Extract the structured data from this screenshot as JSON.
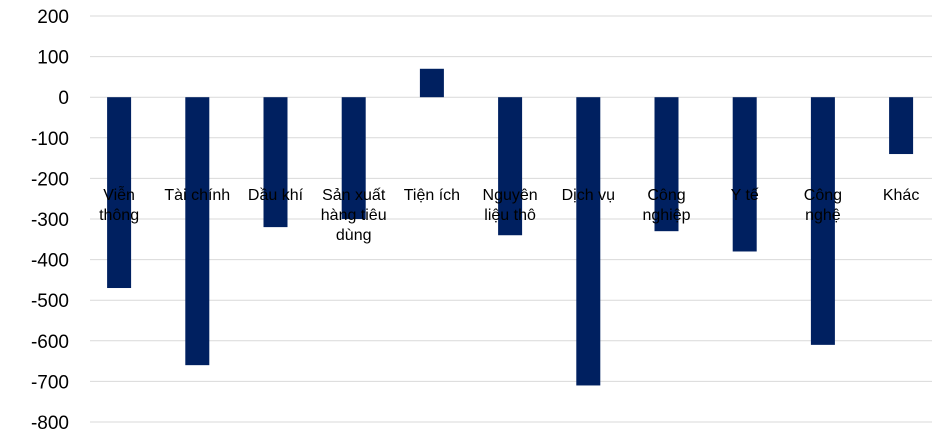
{
  "chart_data": {
    "type": "bar",
    "categories": [
      "Viễn thông",
      "Tài chính",
      "Dầu khí",
      "Sản xuất hàng tiêu dùng",
      "Tiện ích",
      "Nguyên liệu thô",
      "Dịch vụ",
      "Công nghiệp",
      "Y tế",
      "Công nghệ",
      "Khác"
    ],
    "category_label_lines": [
      [
        "Viễn",
        "thông"
      ],
      [
        "Tài chính"
      ],
      [
        "Dầu khí"
      ],
      [
        "Sản xuất",
        "hàng tiêu",
        "dùng"
      ],
      [
        "Tiện ích"
      ],
      [
        "Nguyên",
        "liệu thô"
      ],
      [
        "Dịch vụ"
      ],
      [
        "Công",
        "nghiệp"
      ],
      [
        "Y tế"
      ],
      [
        "Công",
        "nghệ"
      ],
      [
        "Khác"
      ]
    ],
    "values": [
      -470,
      -660,
      -320,
      -300,
      70,
      -340,
      -710,
      -330,
      -380,
      -610,
      -140
    ],
    "y_ticks": [
      "200",
      "100",
      "0",
      "-100",
      "-200",
      "-300",
      "-400",
      "-500",
      "-600",
      "-700",
      "-800"
    ],
    "ylim": [
      -800,
      200
    ],
    "grid": true,
    "bar_color": "#002060",
    "grid_color": "#d9d9d9",
    "title": "",
    "xlabel": "",
    "ylabel": ""
  }
}
